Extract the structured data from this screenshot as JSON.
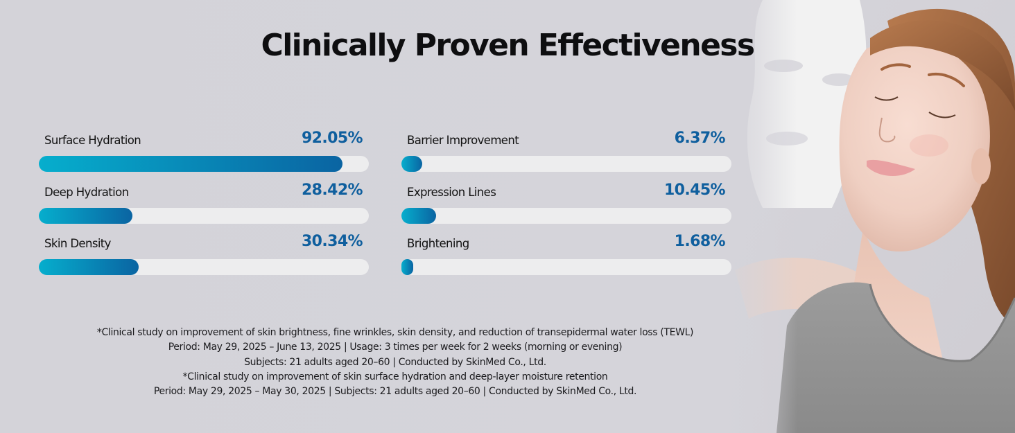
{
  "title": "Clinically Proven Effectiveness",
  "colors": {
    "fill_start": "#06aecd",
    "fill_end": "#0a64a2",
    "track": "#ededee",
    "value_text": "#0f5f9e",
    "background": "#d5d4da"
  },
  "chart_data": {
    "type": "bar",
    "orientation": "horizontal",
    "title": "Clinically Proven Effectiveness",
    "unit": "%",
    "xlim": [
      0,
      100
    ],
    "grid": false,
    "categories": [
      "Surface Hydration",
      "Deep Hydration",
      "Skin Density",
      "Barrier Improvement",
      "Expression Lines",
      "Brightening"
    ],
    "values": [
      92.05,
      28.42,
      30.34,
      6.37,
      10.45,
      1.68
    ],
    "value_labels": [
      "92.05%",
      "28.42%",
      "30.34%",
      "6.37%",
      "10.45%",
      "1.68%"
    ],
    "columns": [
      [
        {
          "label": "Surface Hydration",
          "value": 92.05,
          "display": "92.05%"
        },
        {
          "label": "Deep Hydration",
          "value": 28.42,
          "display": "28.42%"
        },
        {
          "label": "Skin Density",
          "value": 30.34,
          "display": "30.34%"
        }
      ],
      [
        {
          "label": "Barrier Improvement",
          "value": 6.37,
          "display": "6.37%"
        },
        {
          "label": "Expression Lines",
          "value": 10.45,
          "display": "10.45%"
        },
        {
          "label": "Brightening",
          "value": 1.68,
          "display": "1.68%"
        }
      ]
    ]
  },
  "footnotes": [
    "*Clinical study on improvement of skin brightness, fine wrinkles, skin density, and reduction of transepidermal water loss (TEWL)",
    "Period: May 29, 2025 – June 13, 2025 | Usage: 3 times per week for 2 weeks (morning or evening)",
    "Subjects: 21 adults aged 20–60 | Conducted by SkinMed Co., Ltd.",
    "*Clinical study on improvement of skin surface hydration and deep-layer moisture retention",
    "Period: May 29, 2025 – May 30, 2025 | Subjects: 21 adults aged 20–60 | Conducted by SkinMed Co., Ltd."
  ],
  "photo": {
    "subject": "woman with eyes closed and sheet mask floating beside face"
  }
}
